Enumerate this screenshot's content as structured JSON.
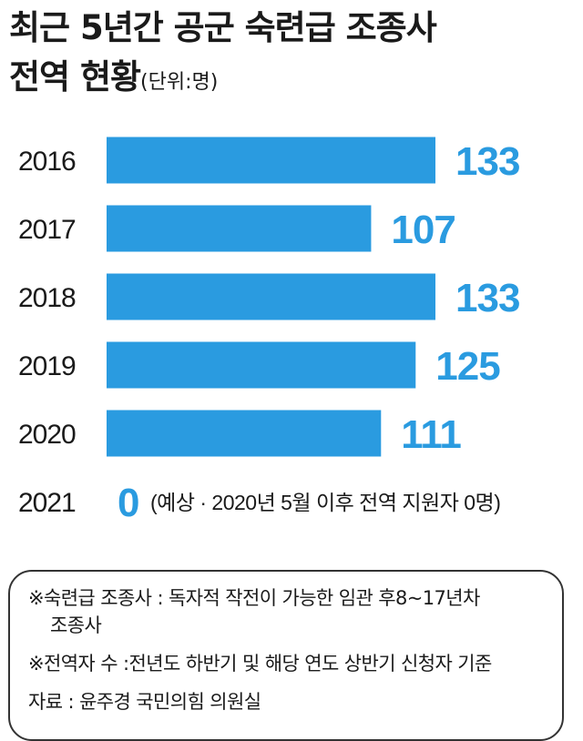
{
  "title": {
    "line1": "최근 5년간 공군 숙련급 조종사",
    "line2": "전역 현황",
    "unit": "(단위:명)"
  },
  "colors": {
    "bar": "#2a9be0",
    "value": "#2a9be0"
  },
  "chart_data": {
    "type": "bar",
    "orientation": "horizontal",
    "categories": [
      "2016",
      "2017",
      "2018",
      "2019",
      "2020",
      "2021"
    ],
    "values": [
      133,
      107,
      133,
      125,
      111,
      0
    ],
    "value_labels": [
      "133",
      "107",
      "133",
      "125",
      "111",
      "0"
    ],
    "annotation": "(예상 · 2020년 5월 이후 전역 지원자 0명)",
    "xlim": [
      0,
      133
    ],
    "grid": false,
    "legend": "none"
  },
  "notes": {
    "line1": "※숙련급 조종사 : 독자적 작전이 가능한 임관 후8~17년차",
    "line2": "조종사",
    "line3": "※전역자 수 :전년도 하반기 및 해당 연도 상반기 신청자 기준",
    "line4": "자료 : 윤주경 국민의힘 의원실"
  }
}
